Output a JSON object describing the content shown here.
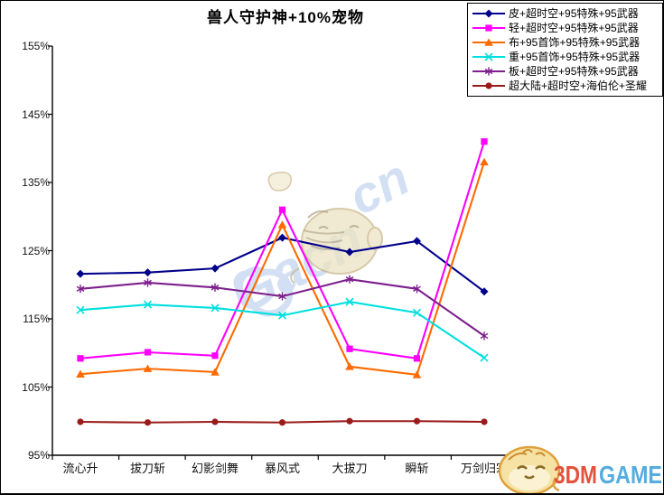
{
  "page": {
    "title": "兽人守护神+10%宠物"
  },
  "watermarks": {
    "center_text": "Gacn",
    "center_text2": "cn",
    "logo_text_1": "3DM",
    "logo_text_2": "GAME",
    "watermark_color": "#6F9CD8",
    "logo_color_1": "#E2523C",
    "logo_color_2": "#55ACDD"
  },
  "chart_data": {
    "type": "line",
    "title": "兽人守护神+10%宠物",
    "categories": [
      "流心升",
      "拔刀斩",
      "幻影剑舞",
      "暴风式",
      "大拔刀",
      "瞬斩",
      "万剑归宗"
    ],
    "y_ticks": [
      "155%",
      "145%",
      "135%",
      "125%",
      "115%",
      "105%",
      "95%"
    ],
    "ylim": [
      95,
      155
    ],
    "ytick_step": 10,
    "grid": false,
    "legend_position": "top-right",
    "series": [
      {
        "name": "皮+超时空+95特殊+95武器",
        "color": "#00008B",
        "marker": "diamond",
        "values": [
          121.6,
          121.8,
          122.4,
          126.9,
          124.8,
          126.4,
          119.0
        ]
      },
      {
        "name": "轻+超时空+95特殊+95武器",
        "color": "#FF00FF",
        "marker": "square",
        "values": [
          109.2,
          110.1,
          109.6,
          131.0,
          110.6,
          109.2,
          141.0
        ]
      },
      {
        "name": "布+95首饰+95特殊+95武器",
        "color": "#FF6A00",
        "marker": "triangle",
        "values": [
          106.9,
          107.7,
          107.2,
          128.8,
          108.0,
          106.8,
          138.0
        ]
      },
      {
        "name": "重+95首饰+95特殊+95武器",
        "color": "#00DFDF",
        "marker": "x",
        "values": [
          116.3,
          117.1,
          116.6,
          115.5,
          117.5,
          115.9,
          109.3
        ]
      },
      {
        "name": "板+超时空+95特殊+95武器",
        "color": "#7D1F8D",
        "marker": "asterisk",
        "values": [
          119.4,
          120.3,
          119.6,
          118.3,
          120.8,
          119.4,
          112.5
        ]
      },
      {
        "name": "超大陆+超时空+海伯伦+圣耀",
        "color": "#9B1B1B",
        "marker": "circle",
        "values": [
          99.9,
          99.8,
          99.9,
          99.8,
          100.0,
          100.0,
          99.9
        ]
      }
    ]
  }
}
